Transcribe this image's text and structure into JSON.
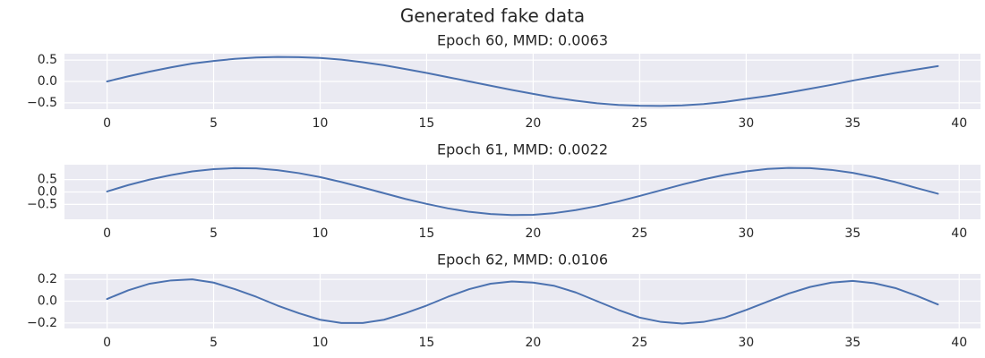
{
  "figure": {
    "suptitle": "Generated fake data"
  },
  "colors": {
    "axes_background": "#eaeaf2",
    "grid": "#ffffff",
    "line": "#4c72b0",
    "text": "#262626"
  },
  "chart_data": [
    {
      "type": "line",
      "title": "Epoch 60, MMD: 0.0063",
      "xlabel": "",
      "ylabel": "",
      "xlim": [
        -2,
        41
      ],
      "ylim": [
        -0.65,
        0.65
      ],
      "xticks": [
        0,
        5,
        10,
        15,
        20,
        25,
        30,
        35,
        40
      ],
      "yticks": [
        0.5,
        0.0,
        -0.5
      ],
      "ytick_labels": [
        "0.5",
        "0.0",
        "−0.5"
      ],
      "grid": true,
      "series": [
        {
          "x": [
            0,
            1,
            2,
            3,
            4,
            5,
            6,
            7,
            8,
            9,
            10,
            11,
            12,
            13,
            14,
            15,
            16,
            17,
            18,
            19,
            20,
            21,
            22,
            23,
            24,
            25,
            26,
            27,
            28,
            29,
            30,
            31,
            32,
            33,
            34,
            35,
            36,
            37,
            38,
            39
          ],
          "values": [
            0.0,
            0.12,
            0.23,
            0.33,
            0.42,
            0.48,
            0.53,
            0.56,
            0.575,
            0.57,
            0.55,
            0.51,
            0.45,
            0.38,
            0.29,
            0.2,
            0.1,
            0.0,
            -0.1,
            -0.2,
            -0.29,
            -0.38,
            -0.45,
            -0.51,
            -0.55,
            -0.57,
            -0.575,
            -0.56,
            -0.53,
            -0.48,
            -0.41,
            -0.34,
            -0.26,
            -0.17,
            -0.08,
            0.02,
            0.11,
            0.2,
            0.28,
            0.36
          ]
        }
      ]
    },
    {
      "type": "line",
      "title": "Epoch 61, MMD: 0.0022",
      "xlabel": "",
      "ylabel": "",
      "xlim": [
        -2,
        41
      ],
      "ylim": [
        -1.1,
        1.1
      ],
      "xticks": [
        0,
        5,
        10,
        15,
        20,
        25,
        30,
        35,
        40
      ],
      "yticks": [
        0.5,
        0.0,
        -0.5
      ],
      "ytick_labels": [
        "0.5",
        "0.0",
        "−0.5"
      ],
      "grid": true,
      "series": [
        {
          "x": [
            0,
            1,
            2,
            3,
            4,
            5,
            6,
            7,
            8,
            9,
            10,
            11,
            12,
            13,
            14,
            15,
            16,
            17,
            18,
            19,
            20,
            21,
            22,
            23,
            24,
            25,
            26,
            27,
            28,
            29,
            30,
            31,
            32,
            33,
            34,
            35,
            36,
            37,
            38,
            39
          ],
          "values": [
            0.02,
            0.28,
            0.5,
            0.68,
            0.83,
            0.92,
            0.96,
            0.95,
            0.88,
            0.76,
            0.6,
            0.4,
            0.18,
            -0.05,
            -0.28,
            -0.48,
            -0.66,
            -0.8,
            -0.89,
            -0.93,
            -0.92,
            -0.85,
            -0.73,
            -0.57,
            -0.38,
            -0.16,
            0.07,
            0.3,
            0.51,
            0.69,
            0.83,
            0.93,
            0.97,
            0.96,
            0.89,
            0.77,
            0.6,
            0.4,
            0.16,
            -0.07
          ]
        }
      ]
    },
    {
      "type": "line",
      "title": "Epoch 62, MMD: 0.0106",
      "xlabel": "",
      "ylabel": "",
      "xlim": [
        -2,
        41
      ],
      "ylim": [
        -0.25,
        0.25
      ],
      "xticks": [
        0,
        5,
        10,
        15,
        20,
        25,
        30,
        35,
        40
      ],
      "yticks": [
        0.2,
        0.0,
        -0.2
      ],
      "ytick_labels": [
        "0.2",
        "0.0",
        "−0.2"
      ],
      "grid": true,
      "series": [
        {
          "x": [
            0,
            1,
            2,
            3,
            4,
            5,
            6,
            7,
            8,
            9,
            10,
            11,
            12,
            13,
            14,
            15,
            16,
            17,
            18,
            19,
            20,
            21,
            22,
            23,
            24,
            25,
            26,
            27,
            28,
            29,
            30,
            31,
            32,
            33,
            34,
            35,
            36,
            37,
            38,
            39
          ],
          "values": [
            0.02,
            0.1,
            0.16,
            0.19,
            0.2,
            0.17,
            0.11,
            0.04,
            -0.04,
            -0.11,
            -0.17,
            -0.2,
            -0.2,
            -0.17,
            -0.11,
            -0.04,
            0.04,
            0.11,
            0.16,
            0.18,
            0.17,
            0.14,
            0.08,
            0.0,
            -0.08,
            -0.15,
            -0.19,
            -0.205,
            -0.19,
            -0.15,
            -0.08,
            -0.005,
            0.07,
            0.13,
            0.17,
            0.185,
            0.165,
            0.12,
            0.05,
            -0.03
          ]
        }
      ]
    }
  ]
}
